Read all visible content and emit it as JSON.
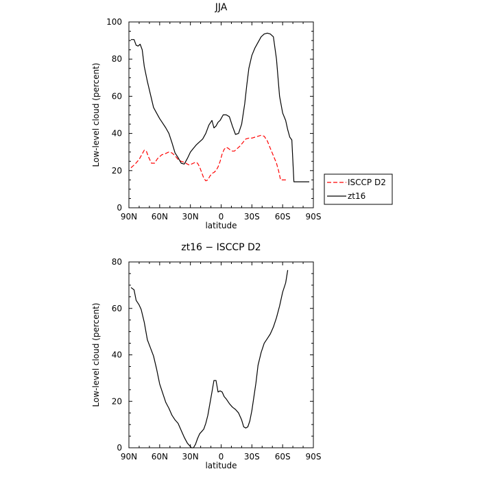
{
  "chart_data": [
    {
      "type": "line",
      "title": "JJA",
      "xlabel": "latitude",
      "ylabel": "Low-level cloud (percent)",
      "xlim": [
        90,
        -90
      ],
      "ylim": [
        0,
        100
      ],
      "x_ticks": [
        "90N",
        "60N",
        "30N",
        "0",
        "30S",
        "60S",
        "90S"
      ],
      "y_ticks": [
        "0",
        "20",
        "40",
        "60",
        "80",
        "100"
      ],
      "legend_position": "right",
      "series": [
        {
          "name": "ISCCP D2",
          "color": "#ff0000",
          "dash": "dashed",
          "x": [
            88,
            84,
            80,
            77,
            75,
            73,
            71,
            68,
            65,
            62,
            58,
            55,
            51,
            48,
            45,
            42,
            39,
            36,
            33,
            31,
            29,
            27,
            25,
            23,
            21,
            19,
            17,
            15,
            13,
            11,
            9,
            7,
            5,
            3,
            1,
            -1,
            -3,
            -5,
            -7,
            -9,
            -11,
            -13,
            -15,
            -18,
            -21,
            -24,
            -27,
            -30,
            -33,
            -36,
            -39,
            -42,
            -45,
            -48,
            -51,
            -54,
            -56,
            -58,
            -60,
            -62,
            -64
          ],
          "y": [
            21.5,
            23.5,
            26,
            29,
            31,
            30.5,
            27.5,
            24,
            24,
            26.5,
            28.5,
            29,
            30,
            29.5,
            28,
            26,
            25,
            24.5,
            23.5,
            23,
            23.5,
            24,
            24.5,
            24,
            22,
            19,
            16,
            14.5,
            15,
            17,
            18.5,
            19,
            20,
            22,
            25,
            29,
            31.5,
            32.5,
            32,
            31,
            30.5,
            30.5,
            31.5,
            33,
            35,
            37,
            37.5,
            37.5,
            38,
            38.5,
            39,
            38.5,
            36,
            32,
            28,
            24,
            20,
            15,
            15,
            15,
            15
          ]
        },
        {
          "name": "zt16",
          "color": "#000000",
          "dash": "solid",
          "x": [
            88,
            85,
            83,
            81,
            79,
            77,
            75,
            72,
            69,
            66,
            63,
            60,
            57,
            54,
            51,
            48,
            45,
            42,
            39,
            36,
            33,
            30,
            27,
            24,
            21,
            18,
            15,
            12,
            9,
            7,
            5,
            3,
            1,
            -2,
            -5,
            -8,
            -11,
            -14,
            -17,
            -20,
            -23,
            -25,
            -27,
            -30,
            -33,
            -36,
            -39,
            -42,
            -45,
            -48,
            -51,
            -54,
            -57,
            -60,
            -63,
            -65,
            -67,
            -69,
            -71,
            -74,
            -77,
            -80,
            -83,
            -86
          ],
          "y": [
            90.5,
            90.5,
            87.5,
            87,
            88,
            85,
            76,
            68,
            61,
            54,
            51,
            48,
            45.5,
            43,
            40,
            35,
            29.5,
            27,
            24,
            23.5,
            26.5,
            30,
            32,
            34,
            35.5,
            37,
            40,
            44.5,
            47,
            43,
            44,
            46,
            47,
            50,
            50,
            49,
            44,
            39.5,
            40,
            45,
            56,
            66,
            75,
            82,
            86,
            89,
            92,
            93.5,
            94,
            93.5,
            92,
            80,
            60,
            51,
            47,
            42,
            38,
            36.5,
            14,
            14,
            14,
            14,
            14,
            14
          ]
        }
      ]
    },
    {
      "type": "line",
      "title": "zt16 − ISCCP D2",
      "xlabel": "latitude",
      "ylabel": "Low-level cloud (percent)",
      "xlim": [
        90,
        -90
      ],
      "ylim": [
        0,
        80
      ],
      "x_ticks": [
        "90N",
        "60N",
        "30N",
        "0",
        "30S",
        "60S",
        "90S"
      ],
      "y_ticks": [
        "0",
        "20",
        "40",
        "60",
        "80"
      ],
      "series": [
        {
          "color": "#000000",
          "dash": "solid",
          "x": [
            88,
            85,
            83,
            80,
            78,
            75,
            72,
            69,
            66,
            63,
            60,
            57,
            54,
            51,
            48,
            45,
            42,
            39,
            36,
            33,
            31,
            29,
            27,
            25,
            23,
            21,
            19,
            17,
            15,
            13,
            11,
            9,
            7,
            5,
            3,
            1,
            -1,
            -3,
            -5,
            -8,
            -11,
            -14,
            -17,
            -20,
            -22,
            -24,
            -26,
            -28,
            -30,
            -32,
            -34,
            -36,
            -39,
            -42,
            -45,
            -48,
            -51,
            -54,
            -57,
            -60,
            -63,
            -65
          ],
          "y": [
            69,
            68,
            63.5,
            61.5,
            59.5,
            54,
            46.5,
            43,
            39.5,
            34,
            27.5,
            23.5,
            19.5,
            17,
            14,
            12,
            10.5,
            7.5,
            4.5,
            2,
            1,
            0,
            0,
            1.5,
            4,
            6,
            7,
            8,
            10.5,
            14,
            19,
            24,
            29,
            29,
            24,
            24.5,
            24,
            22,
            21,
            19,
            17.5,
            16.5,
            15,
            12,
            9,
            8.5,
            9,
            11.5,
            16,
            22,
            28,
            35.5,
            41,
            45,
            47,
            49,
            52,
            56,
            61,
            67,
            71,
            76.5
          ]
        }
      ]
    }
  ]
}
